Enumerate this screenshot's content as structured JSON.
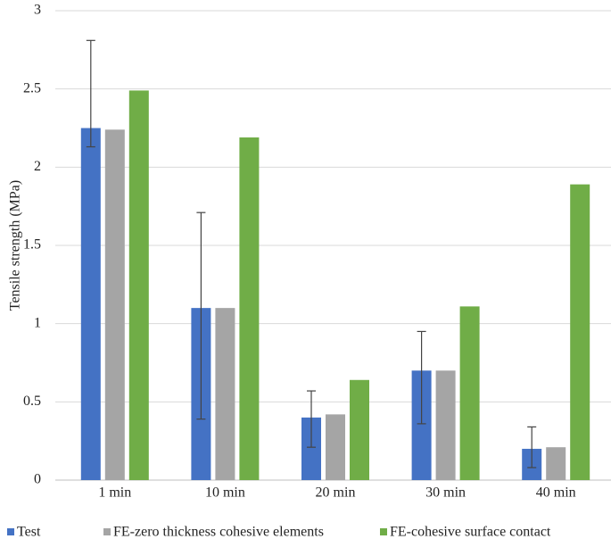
{
  "chart_data": {
    "type": "bar",
    "y_label": "Tensile strength (MPa)",
    "categories": [
      "1 min",
      "10 min",
      "20 min",
      "30 min",
      "40 min"
    ],
    "series": [
      {
        "name": "Test",
        "color": "#4472c4",
        "values": [
          2.25,
          1.1,
          0.4,
          0.7,
          0.2
        ],
        "error_minus": [
          0.12,
          0.71,
          0.19,
          0.34,
          0.12
        ],
        "error_plus": [
          0.56,
          0.61,
          0.17,
          0.25,
          0.14
        ]
      },
      {
        "name": "FE-zero thickness cohesive elements",
        "color": "#a5a5a5",
        "values": [
          2.24,
          1.1,
          0.42,
          0.7,
          0.21
        ]
      },
      {
        "name": "FE-cohesive surface contact",
        "color": "#70ad47",
        "values": [
          2.49,
          2.19,
          0.64,
          1.11,
          1.89
        ]
      }
    ],
    "ylim": [
      0,
      3
    ],
    "yticks": [
      0,
      0.5,
      1,
      1.5,
      2,
      2.5,
      3
    ],
    "grid": true,
    "legend": "bottom"
  }
}
